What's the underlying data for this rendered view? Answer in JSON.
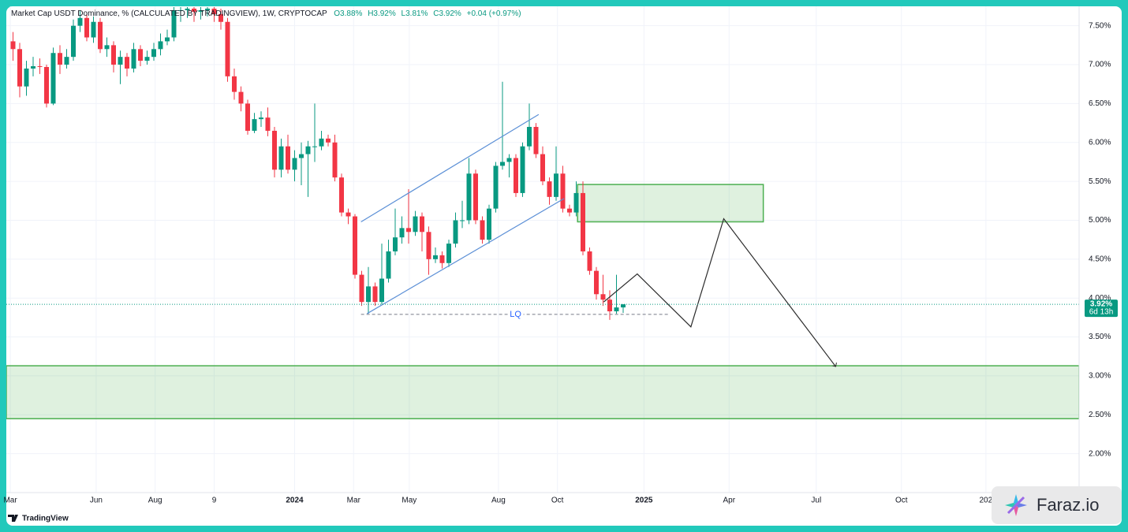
{
  "chart_data": {
    "type": "candlestick",
    "title": "Market Cap USDT Dominance, % (CALCULATED BY TRADINGVIEW), 1W, CRYPTOCAP",
    "legend_values": [
      "O3.88%",
      "H3.92%",
      "L3.81%",
      "C3.92%",
      "+0.04 (+0.97%)"
    ],
    "x": [
      -42,
      -41,
      -40,
      -39,
      -38,
      -37,
      -36,
      -35,
      -34,
      -33,
      -32,
      -31,
      -30,
      -29,
      -28,
      -27,
      -26,
      -25,
      -24,
      -23,
      -22,
      -21,
      -20,
      -19,
      -18,
      -17,
      -16,
      -15,
      -14,
      -13,
      -12,
      -11,
      -10,
      -9,
      -8,
      -7,
      -6,
      -5,
      -4,
      -3,
      -2,
      -1,
      0,
      1,
      2,
      3,
      4,
      5,
      6,
      7,
      8,
      9,
      10,
      11,
      12,
      13,
      14,
      15,
      16,
      17,
      18,
      19,
      20,
      21,
      22,
      23,
      24,
      25,
      26,
      27,
      28,
      29,
      30,
      31,
      32,
      33,
      34,
      35,
      36,
      37,
      38,
      39,
      40,
      41,
      42,
      43,
      44,
      45,
      46,
      47,
      48,
      49
    ],
    "open": [
      7.3,
      7.2,
      6.72,
      6.95,
      6.98,
      6.97,
      6.5,
      7.15,
      7.0,
      7.1,
      7.5,
      7.6,
      7.35,
      7.55,
      7.2,
      7.25,
      7.0,
      7.1,
      6.95,
      7.2,
      7.05,
      7.1,
      7.2,
      7.3,
      7.35,
      7.7,
      7.7,
      7.72,
      7.68,
      7.7,
      7.72,
      7.65,
      7.55,
      6.85,
      6.65,
      6.5,
      6.15,
      6.3,
      6.32,
      6.15,
      5.65,
      5.95,
      5.65,
      5.8,
      5.85,
      5.95,
      5.95,
      6.05,
      6.0,
      5.55,
      5.1,
      5.05,
      4.3,
      3.95,
      4.15,
      3.95,
      4.25,
      4.6,
      4.78,
      4.9,
      4.85,
      5.05,
      4.85,
      4.5,
      4.55,
      4.45,
      4.7,
      5.0,
      5.0,
      5.6,
      5.0,
      4.75,
      5.15,
      5.7,
      5.75,
      5.8,
      5.35,
      5.95,
      6.2,
      5.85,
      5.5,
      5.3,
      5.6,
      5.15,
      5.1,
      5.35,
      4.6,
      4.35,
      4.05,
      3.98,
      3.83,
      3.88
    ],
    "high": [
      7.42,
      7.28,
      7.05,
      7.1,
      7.08,
      7.0,
      7.22,
      7.25,
      7.2,
      7.58,
      7.7,
      7.65,
      7.62,
      7.6,
      7.35,
      7.3,
      7.18,
      7.15,
      7.28,
      7.25,
      7.18,
      7.28,
      7.4,
      7.45,
      7.74,
      7.74,
      7.74,
      7.74,
      7.74,
      7.74,
      7.74,
      7.72,
      7.6,
      6.95,
      6.72,
      6.55,
      6.38,
      6.4,
      6.45,
      6.2,
      6.05,
      6.1,
      5.9,
      6.0,
      6.02,
      6.5,
      6.15,
      6.1,
      6.1,
      5.6,
      5.15,
      5.08,
      4.35,
      4.4,
      4.2,
      4.7,
      4.75,
      5.15,
      5.05,
      5.4,
      5.12,
      5.1,
      4.92,
      4.65,
      4.6,
      4.75,
      5.1,
      5.25,
      5.8,
      5.65,
      5.05,
      5.2,
      5.75,
      6.78,
      5.85,
      5.85,
      6.0,
      6.5,
      6.25,
      5.95,
      5.55,
      5.95,
      5.7,
      5.2,
      5.5,
      5.5,
      4.65,
      4.4,
      4.3,
      4.1,
      4.3,
      3.92
    ],
    "low": [
      7.05,
      6.58,
      6.6,
      6.85,
      6.88,
      6.45,
      6.48,
      6.88,
      6.95,
      7.05,
      7.42,
      7.3,
      7.28,
      7.15,
      7.1,
      6.9,
      6.75,
      6.85,
      6.9,
      6.98,
      7.0,
      7.05,
      7.12,
      7.25,
      7.3,
      7.55,
      7.6,
      7.55,
      7.58,
      7.62,
      7.55,
      7.45,
      6.78,
      6.55,
      6.4,
      6.1,
      6.12,
      6.2,
      6.08,
      5.55,
      5.55,
      5.6,
      5.5,
      5.45,
      5.3,
      5.75,
      5.9,
      5.95,
      5.5,
      5.05,
      4.95,
      4.25,
      3.9,
      3.8,
      3.9,
      3.92,
      4.2,
      4.55,
      4.7,
      4.7,
      4.8,
      4.6,
      4.3,
      4.45,
      4.38,
      4.4,
      4.65,
      4.9,
      4.95,
      4.95,
      4.7,
      4.7,
      5.1,
      5.65,
      5.55,
      5.3,
      5.3,
      5.9,
      5.8,
      5.45,
      5.2,
      5.25,
      5.1,
      5.05,
      5.05,
      4.55,
      4.3,
      3.98,
      3.9,
      3.72,
      3.8,
      3.81
    ],
    "close": [
      7.2,
      6.72,
      6.95,
      6.98,
      6.97,
      6.5,
      7.15,
      7.0,
      7.1,
      7.5,
      7.6,
      7.35,
      7.55,
      7.2,
      7.25,
      7.0,
      7.1,
      6.95,
      7.2,
      7.05,
      7.1,
      7.2,
      7.3,
      7.35,
      7.7,
      7.7,
      7.72,
      7.68,
      7.7,
      7.72,
      7.65,
      7.55,
      6.85,
      6.65,
      6.5,
      6.15,
      6.3,
      6.32,
      6.15,
      5.65,
      5.95,
      5.65,
      5.8,
      5.85,
      5.95,
      5.95,
      6.05,
      6.0,
      5.55,
      5.1,
      5.05,
      4.3,
      3.95,
      4.15,
      3.95,
      4.25,
      4.6,
      4.78,
      4.9,
      4.85,
      5.05,
      4.85,
      4.5,
      4.55,
      4.45,
      4.7,
      5.0,
      5.0,
      5.6,
      5.0,
      4.75,
      5.15,
      5.7,
      5.75,
      5.8,
      5.35,
      5.95,
      6.2,
      5.85,
      5.5,
      5.3,
      5.6,
      5.15,
      5.1,
      5.35,
      4.6,
      4.35,
      4.05,
      3.98,
      3.83,
      3.88,
      3.92
    ],
    "up_color": "#089981",
    "down_color": "#f23645",
    "xlim": [
      -43,
      117
    ],
    "ylim": [
      1.5,
      7.75
    ],
    "xticks": [
      {
        "value": -42.4,
        "label": "Mar"
      },
      {
        "value": -29.6,
        "label": "Jun"
      },
      {
        "value": -20.8,
        "label": "Aug"
      },
      {
        "value": -12,
        "label": "9"
      },
      {
        "value": 0,
        "label": "2024"
      },
      {
        "value": 8.8,
        "label": "Mar"
      },
      {
        "value": 17.1,
        "label": "May"
      },
      {
        "value": 30.4,
        "label": "Aug"
      },
      {
        "value": 39.2,
        "label": "Oct"
      },
      {
        "value": 52.1,
        "label": "2025"
      },
      {
        "value": 64.8,
        "label": "Apr"
      },
      {
        "value": 77.8,
        "label": "Jul"
      },
      {
        "value": 90.5,
        "label": "Oct"
      },
      {
        "value": 103.1,
        "label": "202"
      }
    ],
    "yticks": [
      {
        "value": 7.5,
        "label": "7.50%"
      },
      {
        "value": 7.0,
        "label": "7.00%"
      },
      {
        "value": 6.5,
        "label": "6.50%"
      },
      {
        "value": 6.0,
        "label": "6.00%"
      },
      {
        "value": 5.5,
        "label": "5.50%"
      },
      {
        "value": 5.0,
        "label": "5.00%"
      },
      {
        "value": 4.5,
        "label": "4.50%"
      },
      {
        "value": 4.0,
        "label": "4.00%"
      },
      {
        "value": 3.5,
        "label": "3.50%"
      },
      {
        "value": 3.0,
        "label": "3.00%"
      },
      {
        "value": 2.5,
        "label": "2.50%"
      },
      {
        "value": 2.0,
        "label": "2.00%"
      }
    ],
    "grid": true,
    "last_price_label": "3.92%",
    "countdown": "6d 13h",
    "zones": [
      {
        "x": [
          42.2,
          69.9
        ],
        "y": [
          4.98,
          5.46
        ]
      },
      {
        "x": [
          -43,
          117
        ],
        "y": [
          2.45,
          3.13
        ]
      }
    ],
    "channel": [
      {
        "x": [
          9.9,
          36.4
        ],
        "y": [
          4.98,
          6.36
        ]
      },
      {
        "x": [
          10.8,
          40.2
        ],
        "y": [
          3.8,
          5.28
        ]
      }
    ],
    "liquidity": {
      "label": "LQ",
      "y": 3.79,
      "x": [
        9.9,
        56
      ]
    },
    "projection": {
      "x": [
        46.1,
        51.1,
        59.1,
        64.0,
        80.7
      ],
      "y": [
        3.95,
        4.31,
        3.63,
        5.02,
        3.12
      ]
    }
  },
  "brand": "TradingView",
  "watermark": "Faraz.io"
}
